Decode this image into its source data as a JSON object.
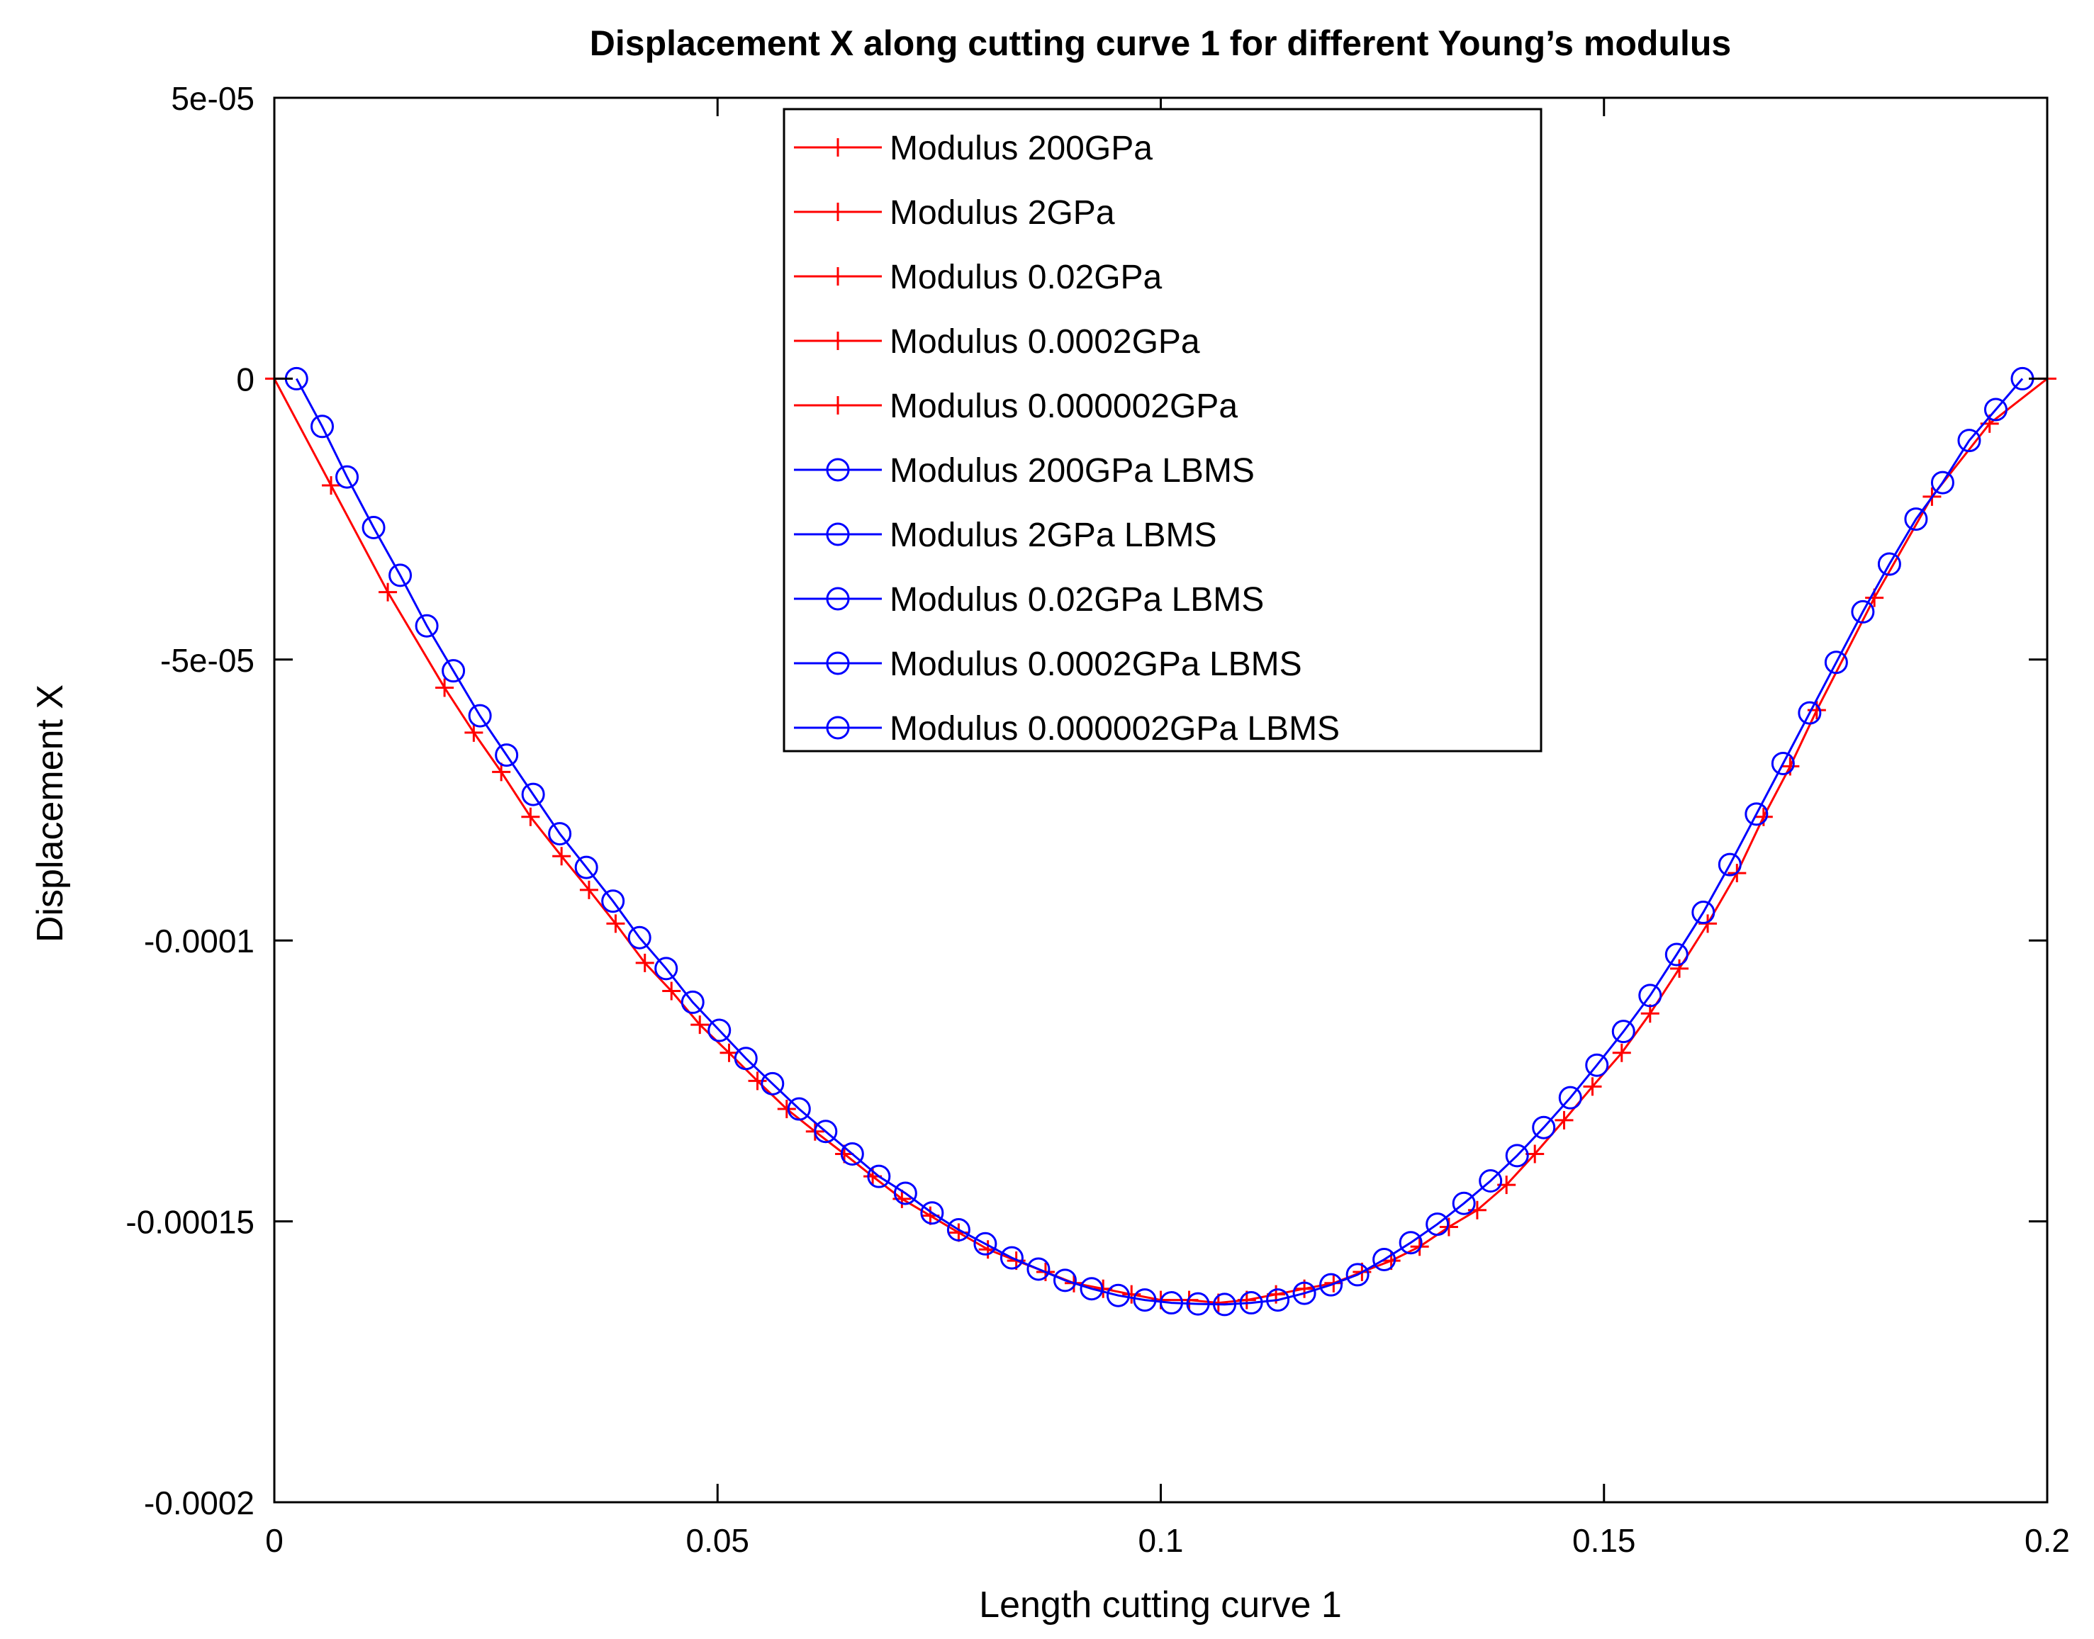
{
  "chart_data": {
    "type": "line",
    "title": "Displacement X along cutting curve 1 for different Young’s modulus",
    "xlabel": "Length cutting curve 1",
    "ylabel": "Displacement X",
    "xlim": [
      0,
      0.2
    ],
    "ylim": [
      -0.0002,
      5e-05
    ],
    "xticks": [
      0,
      0.05,
      0.1,
      0.15,
      0.2
    ],
    "xtick_labels": [
      "0",
      "0.05",
      "0.1",
      "0.15",
      "0.2"
    ],
    "yticks": [
      5e-05,
      0,
      -5e-05,
      -0.0001,
      -0.00015,
      -0.0002
    ],
    "ytick_labels": [
      "5e-05",
      "0",
      "-5e-05",
      "-0.0001",
      "-0.00015",
      "-0.0002"
    ],
    "legend_position": "top-center",
    "colors": {
      "fem": "#ff0000",
      "lbms": "#0000ff",
      "axis": "#000000"
    },
    "series": [
      {
        "name": "Modulus 200GPa",
        "group": "fem",
        "marker": "plus"
      },
      {
        "name": "Modulus 2GPa",
        "group": "fem",
        "marker": "plus"
      },
      {
        "name": "Modulus 0.02GPa",
        "group": "fem",
        "marker": "plus"
      },
      {
        "name": "Modulus 0.0002GPa",
        "group": "fem",
        "marker": "plus"
      },
      {
        "name": "Modulus 0.000002GPa",
        "group": "fem",
        "marker": "plus"
      },
      {
        "name": "Modulus 200GPa LBMS",
        "group": "lbms",
        "marker": "circle"
      },
      {
        "name": "Modulus 2GPa LBMS",
        "group": "lbms",
        "marker": "circle"
      },
      {
        "name": "Modulus 0.02GPa LBMS",
        "group": "lbms",
        "marker": "circle"
      },
      {
        "name": "Modulus 0.0002GPa LBMS",
        "group": "lbms",
        "marker": "circle"
      },
      {
        "name": "Modulus 0.000002GPa LBMS",
        "group": "lbms",
        "marker": "circle"
      }
    ],
    "fem_points": {
      "x": [
        0,
        0.0064,
        0.0128,
        0.0192,
        0.0225,
        0.0256,
        0.0289,
        0.0324,
        0.0355,
        0.0385,
        0.0418,
        0.0448,
        0.048,
        0.0513,
        0.0545,
        0.0578,
        0.061,
        0.0643,
        0.0675,
        0.0708,
        0.074,
        0.0772,
        0.0805,
        0.0837,
        0.087,
        0.0902,
        0.0935,
        0.0967,
        0.1,
        0.1032,
        0.1065,
        0.1097,
        0.113,
        0.1162,
        0.1195,
        0.1227,
        0.126,
        0.1292,
        0.1325,
        0.1357,
        0.139,
        0.1422,
        0.1455,
        0.1487,
        0.152,
        0.1552,
        0.1585,
        0.1617,
        0.165,
        0.168,
        0.171,
        0.174,
        0.1805,
        0.187,
        0.1935,
        0.2
      ],
      "y": [
        0,
        -1.9e-05,
        -3.8e-05,
        -5.5e-05,
        -6.3e-05,
        -7e-05,
        -7.8e-05,
        -8.5e-05,
        -9.1e-05,
        -9.7e-05,
        -0.000104,
        -0.000109,
        -0.000115,
        -0.00012,
        -0.000125,
        -0.00013,
        -0.000134,
        -0.000138,
        -0.000142,
        -0.000146,
        -0.000149,
        -0.000152,
        -0.000155,
        -0.000157,
        -0.000159,
        -0.000161,
        -0.000162,
        -0.000163,
        -0.000164,
        -0.000164,
        -0.0001645,
        -0.000164,
        -0.000163,
        -0.000162,
        -0.000161,
        -0.000159,
        -0.000157,
        -0.0001545,
        -0.000151,
        -0.000148,
        -0.0001435,
        -0.000138,
        -0.000132,
        -0.000126,
        -0.00012,
        -0.000113,
        -0.000105,
        -9.7e-05,
        -8.8e-05,
        -7.8e-05,
        -6.9e-05,
        -5.9e-05,
        -3.9e-05,
        -2.1e-05,
        -8e-06,
        0
      ]
    },
    "lbms_points": {
      "x": [
        0.0025,
        0.0054,
        0.0082,
        0.0112,
        0.0142,
        0.0172,
        0.0202,
        0.0232,
        0.0262,
        0.0292,
        0.0322,
        0.0352,
        0.0382,
        0.0412,
        0.0442,
        0.0472,
        0.0502,
        0.0532,
        0.0562,
        0.0592,
        0.0622,
        0.0652,
        0.0682,
        0.0712,
        0.0742,
        0.0772,
        0.0802,
        0.0832,
        0.0862,
        0.0892,
        0.0922,
        0.0952,
        0.0982,
        0.1012,
        0.1042,
        0.1072,
        0.1102,
        0.1132,
        0.1162,
        0.1192,
        0.1222,
        0.1252,
        0.1282,
        0.1312,
        0.1342,
        0.1372,
        0.1402,
        0.1432,
        0.1462,
        0.1492,
        0.1522,
        0.1552,
        0.1582,
        0.1612,
        0.1642,
        0.1672,
        0.1702,
        0.1732,
        0.1762,
        0.1792,
        0.1822,
        0.1852,
        0.1882,
        0.1912,
        0.1942,
        0.1972
      ],
      "y": [
        0,
        -8.5e-06,
        -1.75e-05,
        -2.65e-05,
        -3.5e-05,
        -4.4e-05,
        -5.2e-05,
        -6e-05,
        -6.7e-05,
        -7.4e-05,
        -8.1e-05,
        -8.7e-05,
        -9.3e-05,
        -9.95e-05,
        -0.000105,
        -0.000111,
        -0.000116,
        -0.000121,
        -0.0001255,
        -0.00013,
        -0.000134,
        -0.000138,
        -0.000142,
        -0.000145,
        -0.0001485,
        -0.0001515,
        -0.000154,
        -0.0001565,
        -0.0001585,
        -0.0001605,
        -0.000162,
        -0.0001632,
        -0.000164,
        -0.0001645,
        -0.0001647,
        -0.0001648,
        -0.0001645,
        -0.000164,
        -0.0001628,
        -0.0001613,
        -0.0001595,
        -0.0001568,
        -0.0001538,
        -0.0001505,
        -0.0001468,
        -0.0001428,
        -0.0001383,
        -0.0001333,
        -0.000128,
        -0.0001222,
        -0.0001162,
        -0.0001098,
        -0.0001025,
        -9.5e-05,
        -8.65e-05,
        -7.75e-05,
        -6.85e-05,
        -5.95e-05,
        -5.05e-05,
        -4.15e-05,
        -3.3e-05,
        -2.5e-05,
        -1.85e-05,
        -1.1e-05,
        -5.5e-06,
        0
      ]
    }
  }
}
